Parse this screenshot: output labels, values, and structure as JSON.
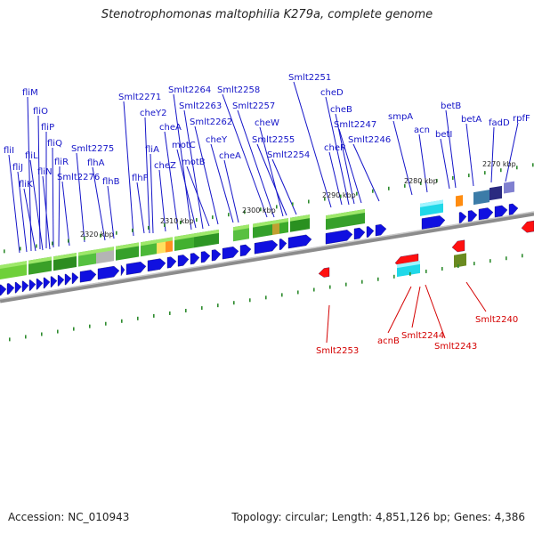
{
  "title": "Stenotrophomonas maltophilia K279a, complete genome",
  "footer": {
    "accession": "Accession: NC_010943",
    "summary": "Topology: circular; Length: 4,851,126 bp; Genes: 4,386"
  },
  "ticks": [
    "2320 kbp",
    "2310 kbp",
    "2300 kbp",
    "2290 kbp",
    "2280 kbp",
    "2270 kbp"
  ],
  "colors": {
    "forward_label": "#1414c8",
    "reverse_label": "#d40000",
    "forward_gene": "#1010e0",
    "reverse_gene": "#ff1010",
    "backbone": "#8c8c8c",
    "tick_dot": "#2e8b2e"
  },
  "forward_labels": [
    "fliM",
    "fliO",
    "fliP",
    "fliQ",
    "fliR",
    "fliI",
    "fliJ",
    "fliL",
    "fliN",
    "fliK",
    "Smlt2276",
    "Smlt2275",
    "flhA",
    "flhB",
    "Smlt2271",
    "cheY2",
    "fliA",
    "cheZ",
    "flhF",
    "Smlt2264",
    "Smlt2263",
    "cheA",
    "motC",
    "motB",
    "Smlt2262",
    "cheY",
    "cheA",
    "Smlt2258",
    "Smlt2257",
    "cheW",
    "Smlt2255",
    "Smlt2254",
    "Smlt2251",
    "cheD",
    "cheB",
    "cheR",
    "Smlt2247",
    "Smlt2246",
    "smpA",
    "acn",
    "betB",
    "betI",
    "betA",
    "fadD",
    "rpfF"
  ],
  "reverse_labels": [
    "Smlt2253",
    "acnB",
    "Smlt2244",
    "Smlt2243",
    "Smlt2240"
  ]
}
